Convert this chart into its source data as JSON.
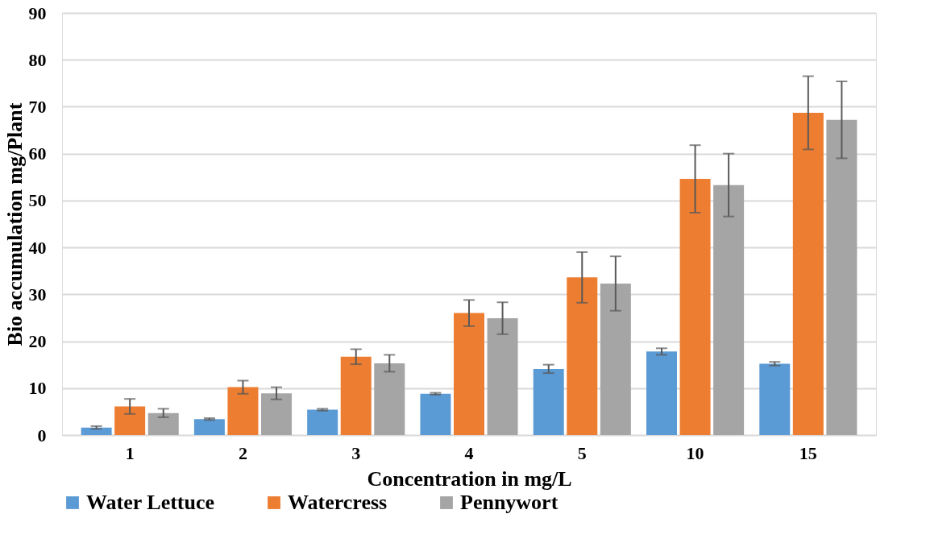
{
  "chart_data": {
    "type": "bar",
    "xlabel": "Concentration in mg/L",
    "ylabel": "Bio accumulation mg/Plant",
    "categories": [
      "1",
      "2",
      "3",
      "4",
      "5",
      "10",
      "15"
    ],
    "series": [
      {
        "name": "Water Lettuce",
        "color": "#5b9bd5",
        "values": [
          1.6,
          3.4,
          5.4,
          8.8,
          14.1,
          17.8,
          15.2
        ],
        "errors": [
          0.3,
          0.2,
          0.2,
          0.2,
          0.9,
          0.7,
          0.4
        ]
      },
      {
        "name": "Watercress",
        "color": "#ed7d31",
        "values": [
          6.1,
          10.2,
          16.7,
          26.0,
          33.6,
          54.6,
          68.7
        ],
        "errors": [
          1.6,
          1.4,
          1.6,
          2.8,
          5.4,
          7.2,
          7.8
        ]
      },
      {
        "name": "Pennywort",
        "color": "#a5a5a5",
        "values": [
          4.7,
          8.9,
          15.3,
          24.9,
          32.3,
          53.3,
          67.2
        ],
        "errors": [
          0.9,
          1.3,
          1.8,
          3.4,
          5.8,
          6.7,
          8.2
        ]
      }
    ],
    "ylim": [
      0,
      90
    ],
    "yticks": [
      0,
      10,
      20,
      30,
      40,
      50,
      60,
      70,
      80,
      90
    ],
    "grid": "y",
    "legend": "bottom"
  }
}
